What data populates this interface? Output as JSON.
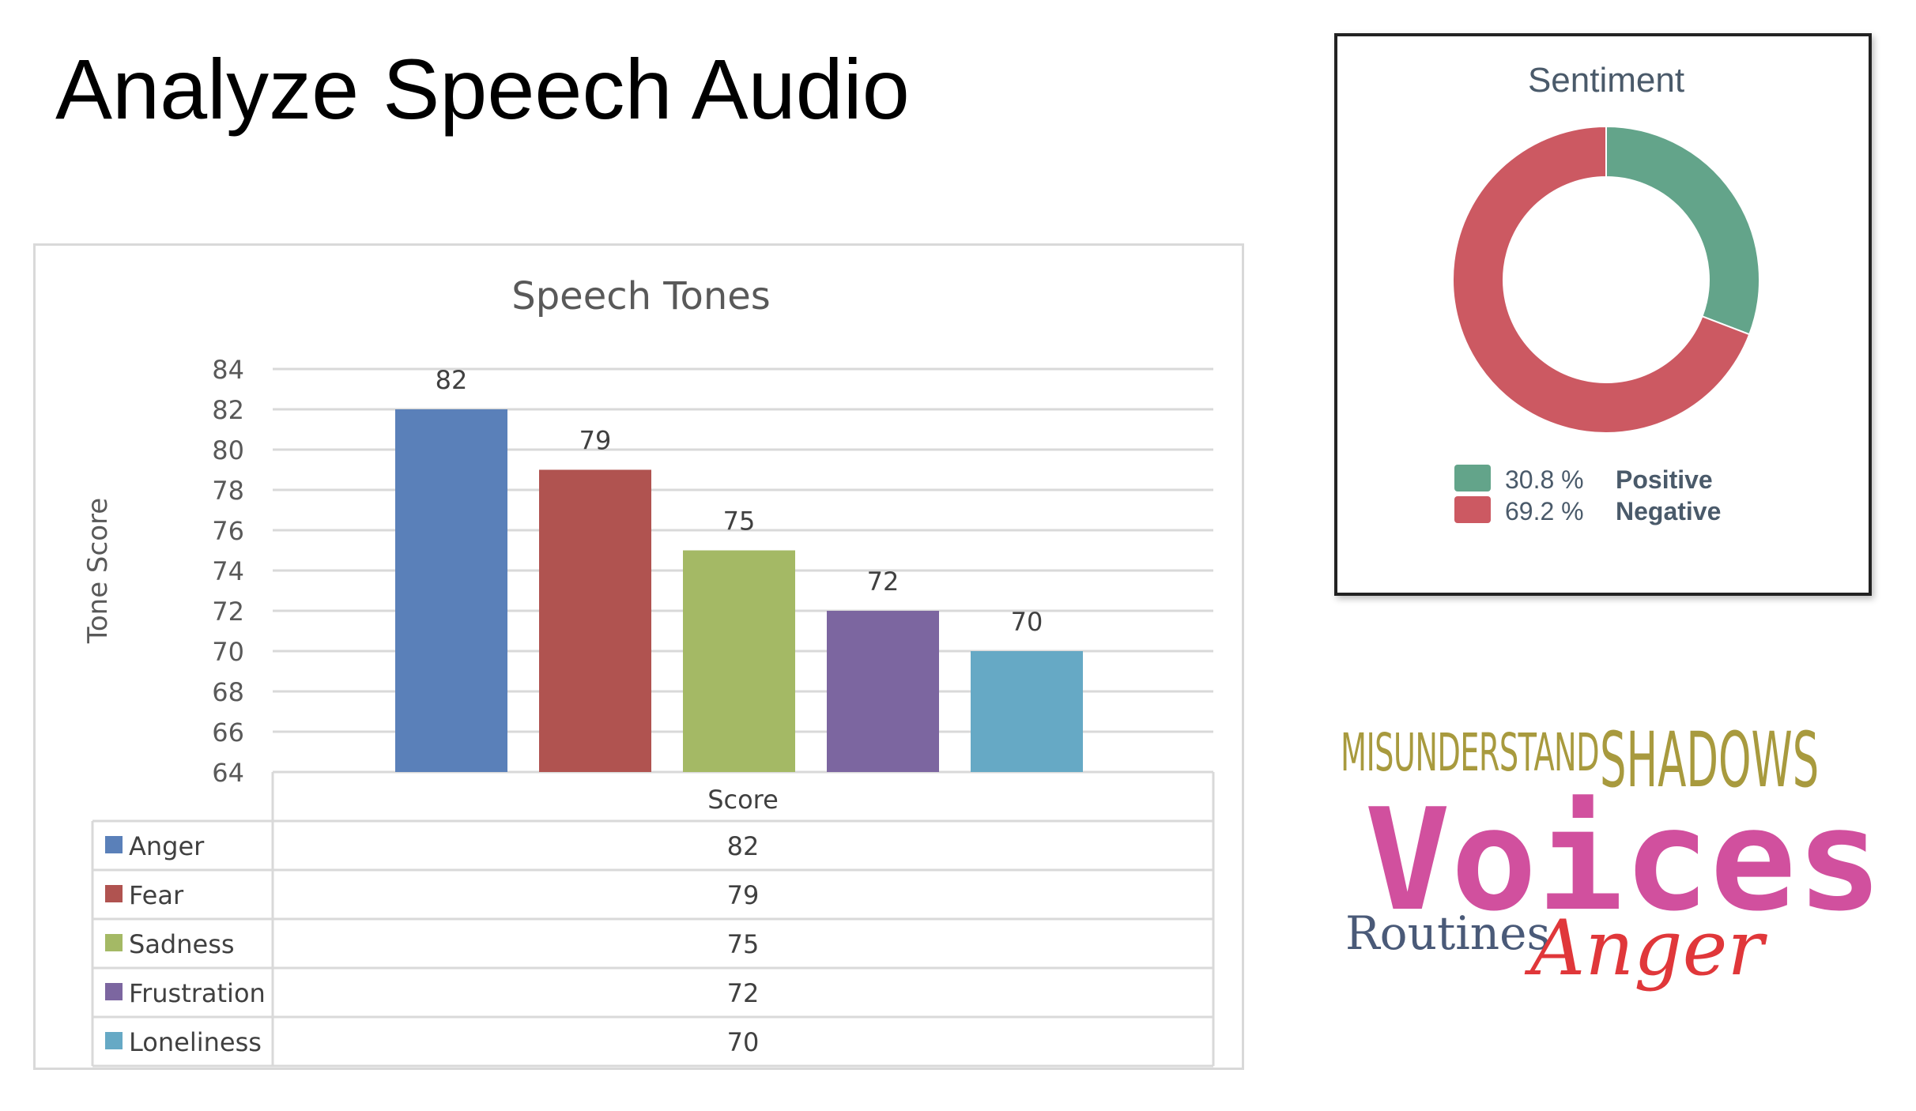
{
  "page": {
    "title": "Analyze Speech Audio"
  },
  "chart_data": [
    {
      "type": "bar",
      "title": "Speech Tones",
      "ylabel": "Tone Score",
      "xlabel": "Score",
      "ylim": [
        64,
        84
      ],
      "yticks": [
        "84",
        "82",
        "80",
        "78",
        "76",
        "74",
        "72",
        "70",
        "68",
        "66",
        "64"
      ],
      "grid": true,
      "legend": "data-table",
      "series": [
        {
          "name": "Anger",
          "value": 82,
          "color": "#5a80b9"
        },
        {
          "name": "Fear",
          "value": 79,
          "color": "#b05350"
        },
        {
          "name": "Sadness",
          "value": 75,
          "color": "#a4b965"
        },
        {
          "name": "Frustration",
          "value": 72,
          "color": "#7c66a0"
        },
        {
          "name": "Loneliness",
          "value": 70,
          "color": "#66a9c5"
        }
      ]
    },
    {
      "type": "pie",
      "title": "Sentiment",
      "donut": true,
      "slices": [
        {
          "name": "Positive",
          "value": 30.8,
          "label": "30.8 %",
          "color": "#63a48a"
        },
        {
          "name": "Negative",
          "value": 69.2,
          "label": "69.2 %",
          "color": "#cc5962"
        }
      ]
    }
  ],
  "wordcloud": {
    "words": [
      {
        "text": "MISUNDERSTAND",
        "color": "#a89a3e"
      },
      {
        "text": "SHADOWS",
        "color": "#a89a3e"
      },
      {
        "text": "Voices",
        "color": "#d1509e"
      },
      {
        "text": "Routines",
        "color": "#4a5a78"
      },
      {
        "text": "Anger",
        "color": "#e0373a"
      }
    ]
  }
}
